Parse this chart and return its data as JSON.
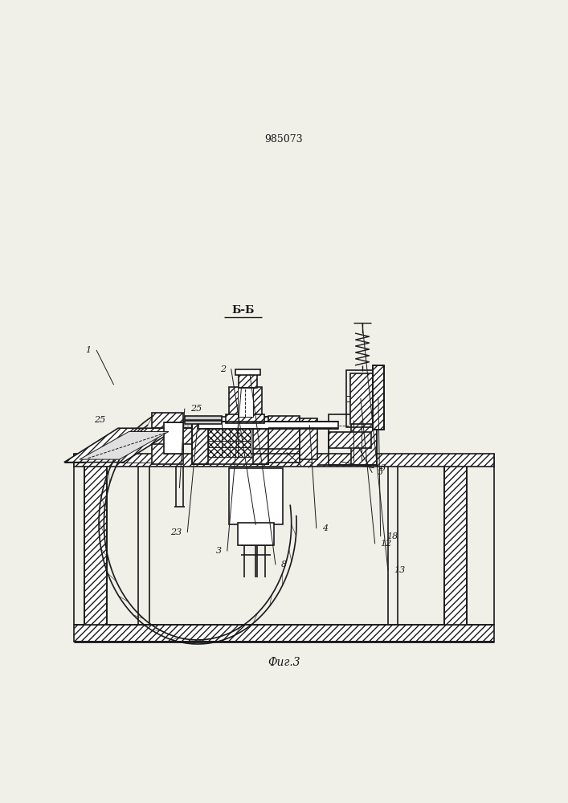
{
  "title": "985073",
  "caption": "Фиг.3",
  "section_label": "Б-Б",
  "bg_color": "#f0efe8",
  "line_color": "#1a1a1a",
  "lw_main": 1.2,
  "lw_thin": 0.7,
  "lw_thick": 2.0
}
